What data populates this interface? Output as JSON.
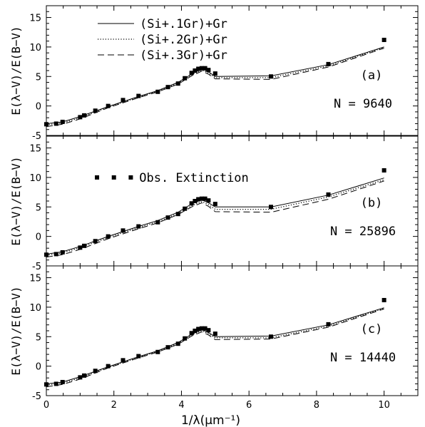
{
  "chart_data": [
    {
      "type": "line",
      "panel_label": "(a)",
      "annotation": "N = 9640",
      "ylabel": "E(λ−V)/E(B−V)",
      "xlim": [
        0,
        11
      ],
      "ylim": [
        -5,
        17
      ],
      "y_ticks": [
        "-5",
        "0",
        "5",
        "10",
        "15"
      ],
      "legend": [
        {
          "label": "(Si+.1Gr)+Gr",
          "style": "solid"
        },
        {
          "label": "(Si+.2Gr)+Gr",
          "style": "dotted"
        },
        {
          "label": "(Si+.3Gr)+Gr",
          "style": "dashed"
        }
      ],
      "observed": {
        "x": [
          0,
          0.29,
          0.48,
          1.0,
          1.12,
          1.45,
          1.83,
          2.27,
          2.73,
          3.3,
          3.6,
          3.9,
          4.1,
          4.3,
          4.4,
          4.5,
          4.6,
          4.7,
          4.8,
          5.0,
          6.65,
          8.35,
          10.0
        ],
        "y": [
          -3.1,
          -3.0,
          -2.7,
          -1.9,
          -1.6,
          -0.8,
          0.0,
          1.0,
          1.7,
          2.4,
          3.2,
          3.8,
          4.7,
          5.6,
          6.0,
          6.3,
          6.4,
          6.4,
          6.1,
          5.5,
          5.0,
          7.1,
          11.2
        ]
      },
      "series": [
        {
          "name": "(Si+.1Gr)+Gr",
          "x": [
            0,
            0.48,
            1.0,
            1.83,
            2.73,
            3.3,
            3.9,
            4.3,
            4.6,
            4.8,
            5.0,
            6.65,
            8.35,
            10.0
          ],
          "y": [
            -3.0,
            -2.7,
            -1.8,
            -0.1,
            1.6,
            2.6,
            4.0,
            5.4,
            6.3,
            5.8,
            5.0,
            5.1,
            7.0,
            10.0
          ]
        },
        {
          "name": "(Si+.2Gr)+Gr",
          "x": [
            0,
            0.48,
            1.0,
            1.83,
            2.73,
            3.3,
            3.9,
            4.3,
            4.6,
            4.8,
            5.0,
            6.65,
            8.35,
            10.0
          ],
          "y": [
            -3.2,
            -2.9,
            -2.0,
            -0.2,
            1.5,
            2.5,
            3.9,
            5.3,
            6.1,
            5.6,
            4.8,
            4.8,
            6.8,
            9.9
          ]
        },
        {
          "name": "(Si+.3Gr)+Gr",
          "x": [
            0,
            0.48,
            1.0,
            1.83,
            2.73,
            3.3,
            3.9,
            4.3,
            4.6,
            4.8,
            5.0,
            6.65,
            8.35,
            10.0
          ],
          "y": [
            -3.5,
            -3.1,
            -2.2,
            -0.3,
            1.4,
            2.4,
            3.7,
            5.1,
            5.9,
            5.4,
            4.6,
            4.5,
            6.6,
            9.8
          ]
        }
      ]
    },
    {
      "type": "line",
      "panel_label": "(b)",
      "annotation": "N = 25896",
      "ylabel": "E(λ−V)/E(B−V)",
      "xlim": [
        0,
        11
      ],
      "ylim": [
        -5,
        17
      ],
      "y_ticks": [
        "-5",
        "0",
        "5",
        "10",
        "15"
      ],
      "legend_obs": "Obs. Extinction",
      "legend_obs_points": {
        "x": [
          1.5,
          2.0,
          2.5
        ],
        "y": [
          10,
          10,
          10
        ]
      },
      "observed": {
        "x": [
          0,
          0.29,
          0.48,
          1.0,
          1.12,
          1.45,
          1.83,
          2.27,
          2.73,
          3.3,
          3.6,
          3.9,
          4.1,
          4.3,
          4.4,
          4.5,
          4.6,
          4.7,
          4.8,
          5.0,
          6.65,
          8.35,
          10.0
        ],
        "y": [
          -3.1,
          -3.0,
          -2.7,
          -1.9,
          -1.6,
          -0.8,
          0.0,
          1.0,
          1.7,
          2.4,
          3.2,
          3.8,
          4.7,
          5.6,
          6.0,
          6.3,
          6.4,
          6.4,
          6.1,
          5.5,
          5.0,
          7.1,
          11.2
        ]
      },
      "series": [
        {
          "name": "(Si+.1Gr)+Gr",
          "x": [
            0,
            0.48,
            1.0,
            1.83,
            2.73,
            3.3,
            3.9,
            4.3,
            4.6,
            4.8,
            5.0,
            6.65,
            8.35,
            10.0
          ],
          "y": [
            -3.0,
            -2.6,
            -1.7,
            0.0,
            1.7,
            2.7,
            4.1,
            5.5,
            6.2,
            5.7,
            5.0,
            5.0,
            7.0,
            9.9
          ]
        },
        {
          "name": "(Si+.2Gr)+Gr",
          "x": [
            0,
            0.48,
            1.0,
            1.83,
            2.73,
            3.3,
            3.9,
            4.3,
            4.6,
            4.8,
            5.0,
            6.65,
            8.35,
            10.0
          ],
          "y": [
            -3.2,
            -2.8,
            -1.9,
            -0.2,
            1.5,
            2.5,
            3.9,
            5.2,
            5.9,
            5.4,
            4.6,
            4.6,
            6.7,
            9.6
          ]
        },
        {
          "name": "(Si+.3Gr)+Gr",
          "x": [
            0,
            0.48,
            1.0,
            1.83,
            2.73,
            3.3,
            3.9,
            4.3,
            4.6,
            4.8,
            5.0,
            6.65,
            8.35,
            10.0
          ],
          "y": [
            -3.5,
            -3.1,
            -2.2,
            -0.4,
            1.3,
            2.3,
            3.7,
            5.0,
            5.7,
            5.1,
            4.2,
            4.1,
            6.3,
            9.4
          ]
        }
      ]
    },
    {
      "type": "line",
      "panel_label": "(c)",
      "annotation": "N = 14440",
      "ylabel": "E(λ−V)/E(B−V)",
      "xlabel": "1/λ(μm⁻¹)",
      "xlim": [
        0,
        11
      ],
      "ylim": [
        -5,
        17
      ],
      "x_ticks": [
        "0",
        "2",
        "4",
        "6",
        "8",
        "10"
      ],
      "y_ticks": [
        "-5",
        "0",
        "5",
        "10",
        "15"
      ],
      "observed": {
        "x": [
          0,
          0.29,
          0.48,
          1.0,
          1.12,
          1.45,
          1.83,
          2.27,
          2.73,
          3.3,
          3.6,
          3.9,
          4.1,
          4.3,
          4.4,
          4.5,
          4.6,
          4.7,
          4.8,
          5.0,
          6.65,
          8.35,
          10.0
        ],
        "y": [
          -3.1,
          -3.0,
          -2.7,
          -1.9,
          -1.6,
          -0.8,
          0.0,
          1.0,
          1.7,
          2.4,
          3.2,
          3.8,
          4.7,
          5.6,
          6.0,
          6.3,
          6.4,
          6.4,
          6.1,
          5.5,
          5.0,
          7.1,
          11.2
        ]
      },
      "series": [
        {
          "name": "(Si+.1Gr)+Gr",
          "x": [
            0,
            0.48,
            1.0,
            1.83,
            2.73,
            3.3,
            3.9,
            4.3,
            4.6,
            4.8,
            5.0,
            6.65,
            8.35,
            10.0
          ],
          "y": [
            -3.0,
            -2.7,
            -1.8,
            -0.1,
            1.6,
            2.6,
            4.0,
            5.4,
            6.2,
            5.7,
            5.0,
            5.1,
            7.0,
            9.9
          ]
        },
        {
          "name": "(Si+.2Gr)+Gr",
          "x": [
            0,
            0.48,
            1.0,
            1.83,
            2.73,
            3.3,
            3.9,
            4.3,
            4.6,
            4.8,
            5.0,
            6.65,
            8.35,
            10.0
          ],
          "y": [
            -3.2,
            -2.9,
            -2.0,
            -0.2,
            1.5,
            2.5,
            3.9,
            5.3,
            6.0,
            5.5,
            4.8,
            4.8,
            6.8,
            9.8
          ]
        },
        {
          "name": "(Si+.3Gr)+Gr",
          "x": [
            0,
            0.48,
            1.0,
            1.83,
            2.73,
            3.3,
            3.9,
            4.3,
            4.6,
            4.8,
            5.0,
            6.65,
            8.35,
            10.0
          ],
          "y": [
            -3.5,
            -3.1,
            -2.2,
            -0.3,
            1.4,
            2.4,
            3.7,
            5.1,
            5.8,
            5.3,
            4.5,
            4.6,
            6.6,
            9.7
          ]
        }
      ]
    }
  ]
}
